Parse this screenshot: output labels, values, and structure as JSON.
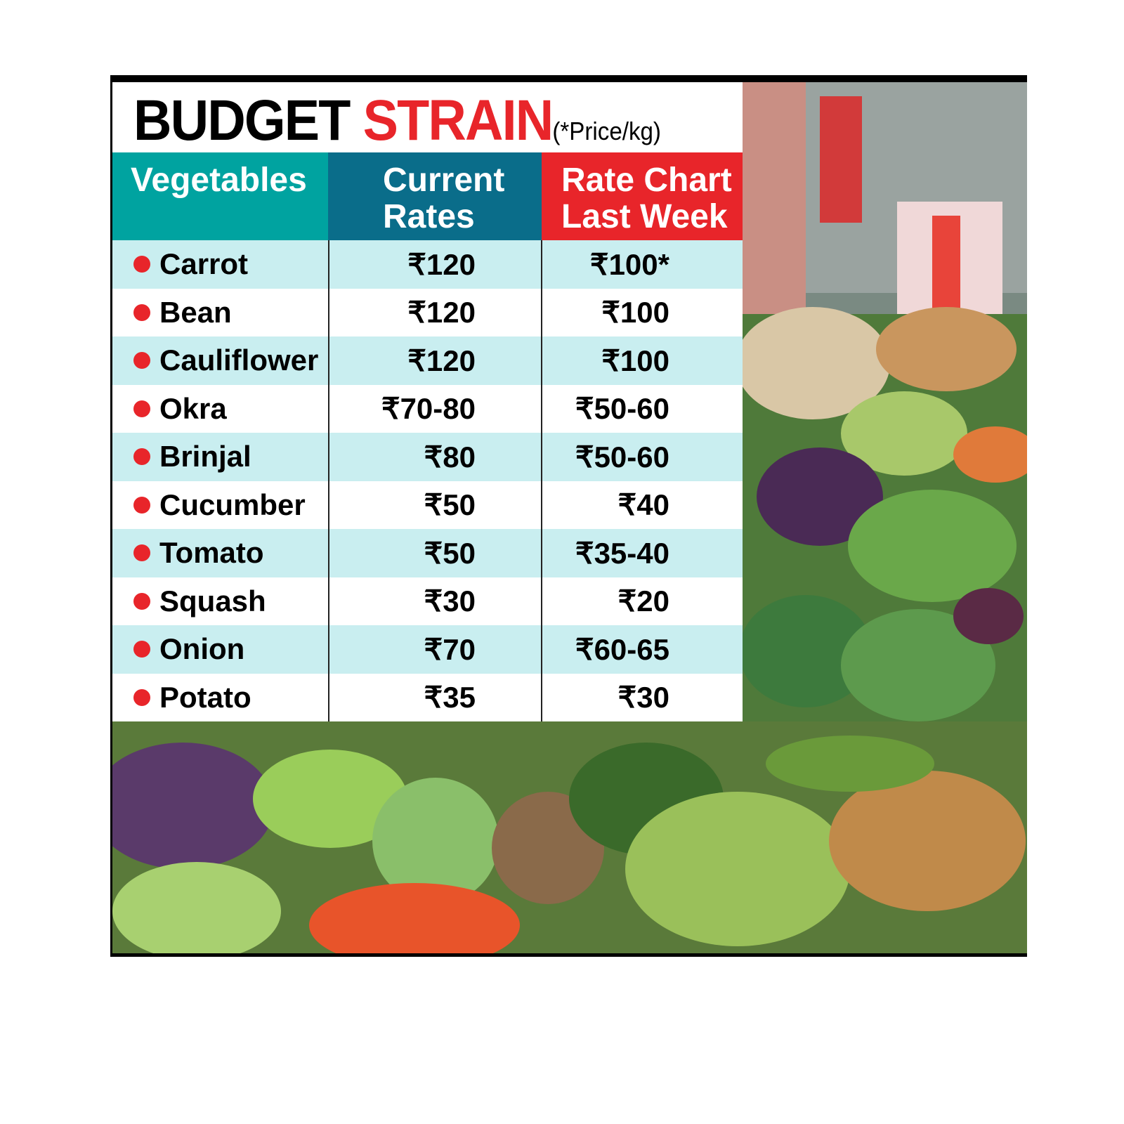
{
  "header": {
    "title_black": "BUDGET",
    "title_red": "STRAIN",
    "note": "(*Price/kg)"
  },
  "table": {
    "columns": [
      "Vegetables",
      "Current Rates",
      "Rate Chart Last Week"
    ],
    "rows": [
      [
        "Carrot",
        "₹120",
        "₹100*"
      ],
      [
        "Bean",
        "₹120",
        "₹100"
      ],
      [
        "Cauliflower",
        "₹120",
        "₹100"
      ],
      [
        "Okra",
        "₹70-80",
        "₹50-60"
      ],
      [
        "Brinjal",
        "₹80",
        "₹50-60"
      ],
      [
        "Cucumber",
        "₹50",
        "₹40"
      ],
      [
        "Tomato",
        "₹50",
        "₹35-40"
      ],
      [
        "Squash",
        "₹30",
        "₹20"
      ],
      [
        "Onion",
        "₹70",
        "₹60-65"
      ],
      [
        "Potato",
        "₹35",
        "₹30"
      ]
    ]
  }
}
